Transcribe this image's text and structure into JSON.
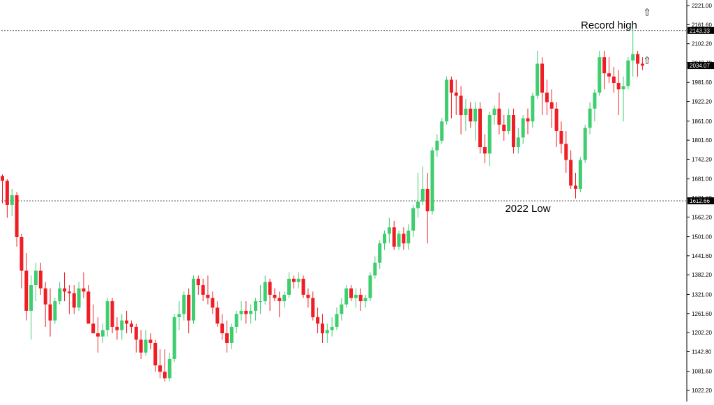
{
  "chart_data": {
    "type": "candlestick",
    "ylim": [
      1022.2,
      2221.0
    ],
    "y_ticks": [
      "2221.00",
      "2161.60",
      "2102.20",
      "2043.40",
      "1981.60",
      "1922.20",
      "1861.00",
      "1801.60",
      "1742.20",
      "1681.00",
      "1621.60",
      "1562.20",
      "1501.00",
      "1441.60",
      "1382.20",
      "1321.00",
      "1261.60",
      "1202.20",
      "1142.80",
      "1081.60",
      "1022.20"
    ],
    "level_lines": [
      {
        "value": 2143.33,
        "label": "2143.33"
      },
      {
        "value": 1612.66,
        "label": "1612.66"
      }
    ],
    "current_price": {
      "value": 2034.07,
      "label": "2034.07"
    },
    "annotations": [
      {
        "text": "Record high",
        "value": 2143.33,
        "index": 127
      },
      {
        "text": "2022 Low",
        "value": 1612.66,
        "index": 110
      }
    ],
    "arrows": [
      {
        "value": 2200,
        "glyph": "⇧"
      },
      {
        "value": 2050,
        "glyph": "⇧"
      }
    ],
    "colors": {
      "up": "#3fce6f",
      "down": "#ef1d24",
      "level_line": "#444444",
      "price_tag": "#000000"
    },
    "ohlc": [
      [
        1690,
        1695,
        1605,
        1675
      ],
      [
        1675,
        1680,
        1560,
        1600
      ],
      [
        1600,
        1650,
        1565,
        1630
      ],
      [
        1630,
        1640,
        1470,
        1500
      ],
      [
        1500,
        1510,
        1340,
        1395
      ],
      [
        1395,
        1450,
        1240,
        1270
      ],
      [
        1270,
        1380,
        1180,
        1350
      ],
      [
        1350,
        1420,
        1300,
        1395
      ],
      [
        1395,
        1420,
        1320,
        1340
      ],
      [
        1340,
        1360,
        1220,
        1290
      ],
      [
        1290,
        1340,
        1190,
        1240
      ],
      [
        1240,
        1310,
        1230,
        1300
      ],
      [
        1300,
        1360,
        1290,
        1340
      ],
      [
        1340,
        1390,
        1300,
        1330
      ],
      [
        1330,
        1350,
        1260,
        1325
      ],
      [
        1325,
        1350,
        1260,
        1280
      ],
      [
        1280,
        1360,
        1270,
        1340
      ],
      [
        1340,
        1390,
        1310,
        1330
      ],
      [
        1330,
        1350,
        1230,
        1230
      ],
      [
        1230,
        1290,
        1200,
        1200
      ],
      [
        1200,
        1250,
        1140,
        1190
      ],
      [
        1190,
        1230,
        1170,
        1210
      ],
      [
        1210,
        1310,
        1190,
        1300
      ],
      [
        1300,
        1310,
        1200,
        1220
      ],
      [
        1220,
        1250,
        1180,
        1210
      ],
      [
        1210,
        1260,
        1180,
        1240
      ],
      [
        1240,
        1270,
        1200,
        1230
      ],
      [
        1230,
        1240,
        1200,
        1220
      ],
      [
        1220,
        1230,
        1140,
        1180
      ],
      [
        1180,
        1210,
        1120,
        1140
      ],
      [
        1140,
        1210,
        1130,
        1180
      ],
      [
        1180,
        1200,
        1150,
        1170
      ],
      [
        1170,
        1180,
        1080,
        1100
      ],
      [
        1100,
        1150,
        1060,
        1080
      ],
      [
        1080,
        1150,
        1050,
        1060
      ],
      [
        1060,
        1140,
        1050,
        1120
      ],
      [
        1120,
        1260,
        1110,
        1250
      ],
      [
        1250,
        1300,
        1210,
        1260
      ],
      [
        1260,
        1330,
        1240,
        1320
      ],
      [
        1320,
        1340,
        1200,
        1240
      ],
      [
        1240,
        1380,
        1230,
        1370
      ],
      [
        1370,
        1380,
        1320,
        1350
      ],
      [
        1350,
        1370,
        1300,
        1320
      ],
      [
        1320,
        1380,
        1290,
        1310
      ],
      [
        1310,
        1330,
        1260,
        1280
      ],
      [
        1280,
        1300,
        1220,
        1230
      ],
      [
        1230,
        1260,
        1180,
        1200
      ],
      [
        1200,
        1240,
        1140,
        1170
      ],
      [
        1170,
        1230,
        1150,
        1220
      ],
      [
        1220,
        1270,
        1200,
        1260
      ],
      [
        1260,
        1300,
        1240,
        1270
      ],
      [
        1270,
        1300,
        1230,
        1260
      ],
      [
        1260,
        1290,
        1230,
        1270
      ],
      [
        1270,
        1310,
        1240,
        1300
      ],
      [
        1300,
        1350,
        1260,
        1300
      ],
      [
        1300,
        1380,
        1290,
        1360
      ],
      [
        1360,
        1370,
        1270,
        1320
      ],
      [
        1320,
        1340,
        1300,
        1310
      ],
      [
        1310,
        1330,
        1250,
        1300
      ],
      [
        1300,
        1330,
        1280,
        1320
      ],
      [
        1320,
        1390,
        1310,
        1370
      ],
      [
        1370,
        1380,
        1340,
        1360
      ],
      [
        1360,
        1390,
        1340,
        1370
      ],
      [
        1370,
        1380,
        1310,
        1320
      ],
      [
        1320,
        1340,
        1280,
        1310
      ],
      [
        1310,
        1330,
        1240,
        1250
      ],
      [
        1250,
        1280,
        1200,
        1230
      ],
      [
        1230,
        1260,
        1170,
        1200
      ],
      [
        1200,
        1230,
        1170,
        1210
      ],
      [
        1210,
        1250,
        1190,
        1220
      ],
      [
        1220,
        1280,
        1210,
        1260
      ],
      [
        1260,
        1310,
        1240,
        1290
      ],
      [
        1290,
        1350,
        1280,
        1340
      ],
      [
        1340,
        1350,
        1300,
        1310
      ],
      [
        1310,
        1340,
        1280,
        1320
      ],
      [
        1320,
        1340,
        1270,
        1300
      ],
      [
        1300,
        1320,
        1280,
        1310
      ],
      [
        1310,
        1390,
        1300,
        1380
      ],
      [
        1380,
        1440,
        1370,
        1420
      ],
      [
        1420,
        1490,
        1400,
        1480
      ],
      [
        1480,
        1520,
        1460,
        1510
      ],
      [
        1510,
        1560,
        1480,
        1530
      ],
      [
        1530,
        1550,
        1460,
        1470
      ],
      [
        1470,
        1520,
        1460,
        1510
      ],
      [
        1510,
        1530,
        1460,
        1480
      ],
      [
        1480,
        1540,
        1460,
        1520
      ],
      [
        1520,
        1600,
        1500,
        1590
      ],
      [
        1590,
        1700,
        1560,
        1610
      ],
      [
        1610,
        1720,
        1600,
        1650
      ],
      [
        1650,
        1700,
        1480,
        1580
      ],
      [
        1580,
        1780,
        1570,
        1770
      ],
      [
        1770,
        1820,
        1750,
        1800
      ],
      [
        1800,
        1870,
        1790,
        1860
      ],
      [
        1860,
        2000,
        1850,
        1990
      ],
      [
        1990,
        2000,
        1870,
        1950
      ],
      [
        1950,
        1990,
        1880,
        1940
      ],
      [
        1940,
        1970,
        1820,
        1880
      ],
      [
        1880,
        1930,
        1830,
        1900
      ],
      [
        1900,
        1920,
        1840,
        1860
      ],
      [
        1860,
        1920,
        1800,
        1900
      ],
      [
        1900,
        1920,
        1760,
        1780
      ],
      [
        1780,
        1820,
        1730,
        1760
      ],
      [
        1760,
        1890,
        1720,
        1880
      ],
      [
        1880,
        1910,
        1850,
        1900
      ],
      [
        1900,
        1950,
        1820,
        1850
      ],
      [
        1850,
        1880,
        1800,
        1830
      ],
      [
        1830,
        1900,
        1820,
        1880
      ],
      [
        1880,
        1900,
        1760,
        1780
      ],
      [
        1780,
        1840,
        1760,
        1810
      ],
      [
        1810,
        1880,
        1790,
        1870
      ],
      [
        1870,
        1900,
        1820,
        1860
      ],
      [
        1860,
        1950,
        1840,
        1940
      ],
      [
        1940,
        2080,
        1930,
        2040
      ],
      [
        2040,
        2060,
        1880,
        1950
      ],
      [
        1950,
        1990,
        1880,
        1920
      ],
      [
        1920,
        1960,
        1840,
        1900
      ],
      [
        1900,
        1920,
        1780,
        1830
      ],
      [
        1830,
        1860,
        1760,
        1790
      ],
      [
        1790,
        1830,
        1700,
        1740
      ],
      [
        1740,
        1770,
        1650,
        1660
      ],
      [
        1660,
        1700,
        1620,
        1650
      ],
      [
        1650,
        1750,
        1640,
        1740
      ],
      [
        1740,
        1850,
        1730,
        1840
      ],
      [
        1840,
        1920,
        1820,
        1900
      ],
      [
        1900,
        1960,
        1860,
        1950
      ],
      [
        1950,
        2080,
        1940,
        2060
      ],
      [
        2060,
        2080,
        1960,
        2010
      ],
      [
        2010,
        2060,
        1980,
        2000
      ],
      [
        2000,
        2030,
        1950,
        1980
      ],
      [
        1980,
        2020,
        1880,
        1960
      ],
      [
        1960,
        2000,
        1860,
        1970
      ],
      [
        1970,
        2060,
        1960,
        2050
      ],
      [
        2050,
        2150,
        2000,
        2070
      ],
      [
        2070,
        2080,
        2000,
        2040
      ],
      [
        2040,
        2060,
        2020,
        2034.07
      ]
    ]
  }
}
